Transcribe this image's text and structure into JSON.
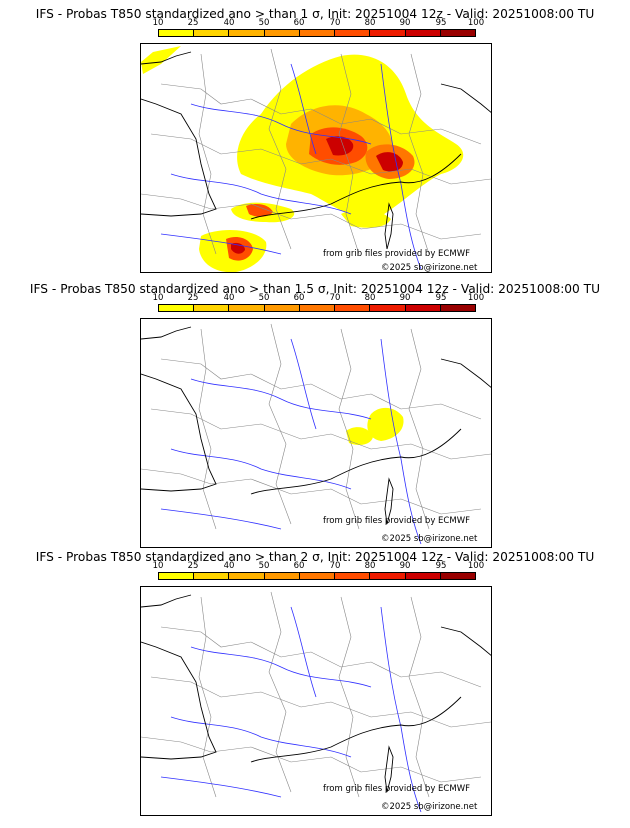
{
  "colorbar": {
    "ticks": [
      "10",
      "25",
      "40",
      "50",
      "60",
      "70",
      "80",
      "90",
      "95",
      "100"
    ],
    "colors": [
      "#ffff00",
      "#ffd500",
      "#ffb300",
      "#ff9900",
      "#ff7700",
      "#ff4d00",
      "#ee1c00",
      "#cc0000",
      "#990000",
      "#661100"
    ]
  },
  "panels": [
    {
      "title": "IFS - Probas T850  standardized ano > than 1 σ, Init: 20251004 12z - Valid: 20251008:00 TU",
      "source": "from grib files provided by ECMWF",
      "copyright": "©2025 sb@irizone.net"
    },
    {
      "title": "IFS - Probas T850  standardized ano > than 1.5 σ, Init: 20251004 12z - Valid: 20251008:00 TU",
      "source": "from grib files provided by ECMWF",
      "copyright": "©2025 sb@irizone.net"
    },
    {
      "title": "IFS - Probas T850  standardized ano > than 2 σ, Init: 20251004 12z - Valid: 20251008:00 TU",
      "source": "from grib files provided by ECMWF",
      "copyright": "©2025 sb@irizone.net"
    }
  ]
}
